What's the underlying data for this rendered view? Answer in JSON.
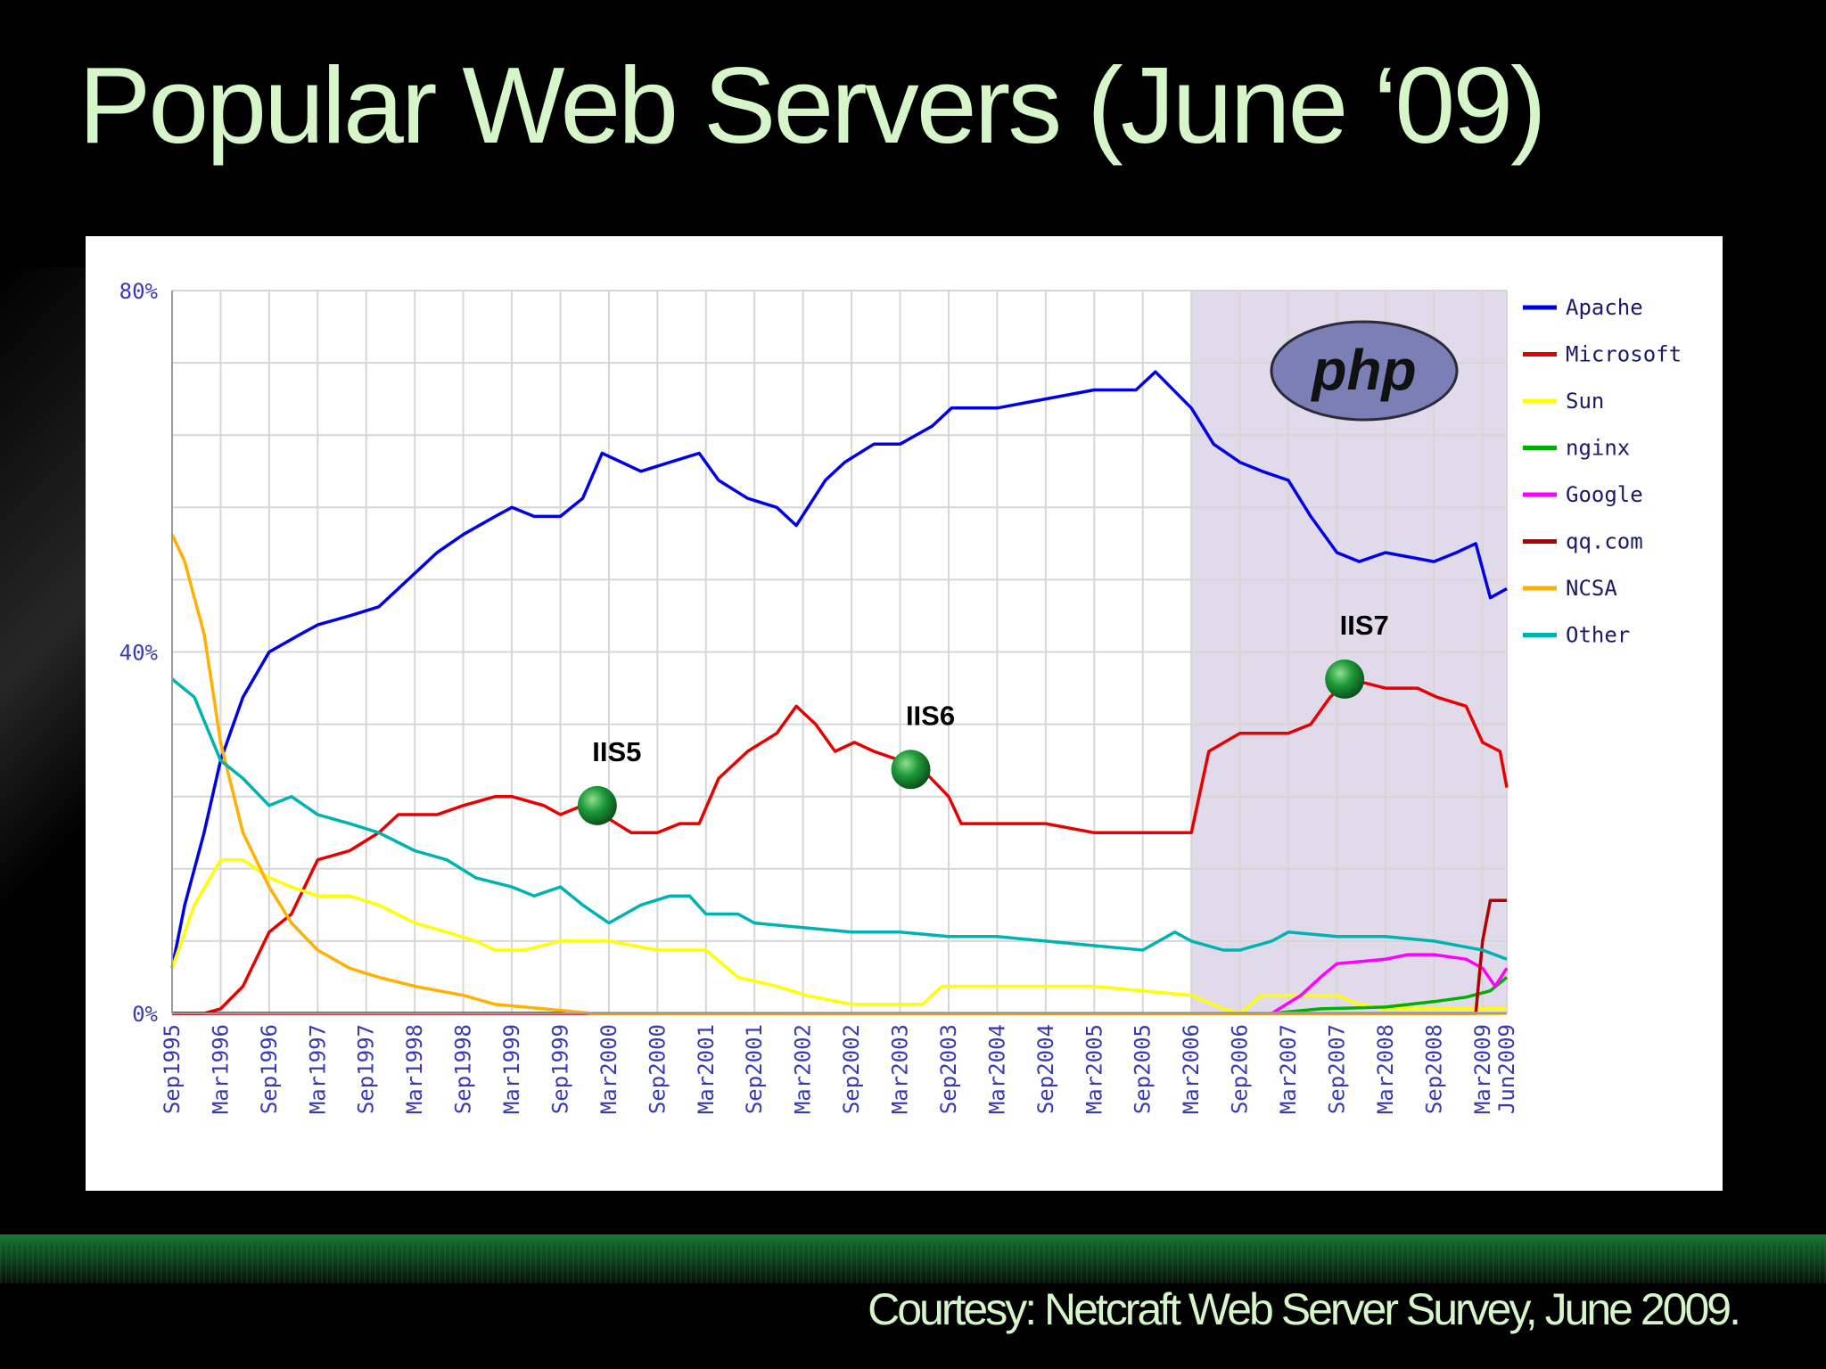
{
  "slide": {
    "title": "Popular Web Servers (June ‘09)",
    "credit": "Courtesy: Netcraft Web Server Survey, June 2009."
  },
  "chart_data": {
    "type": "line",
    "ylim": [
      0,
      80
    ],
    "ytick_labels": [
      "80%",
      "40%",
      "0%"
    ],
    "yticks": [
      80,
      40,
      0
    ],
    "x_tick_labels": [
      "Sep1995",
      "Mar1996",
      "Sep1996",
      "Mar1997",
      "Sep1997",
      "Mar1998",
      "Sep1998",
      "Mar1999",
      "Sep1999",
      "Mar2000",
      "Sep2000",
      "Mar2001",
      "Sep2001",
      "Mar2002",
      "Sep2002",
      "Mar2003",
      "Sep2003",
      "Mar2004",
      "Sep2004",
      "Mar2005",
      "Sep2005",
      "Mar2006",
      "Sep2006",
      "Mar2007",
      "Sep2007",
      "Mar2008",
      "Sep2008",
      "Mar2009",
      "Jun2009"
    ],
    "x_tick_values": [
      1995.67,
      1996.17,
      1996.67,
      1997.17,
      1997.67,
      1998.17,
      1998.67,
      1999.17,
      1999.67,
      2000.17,
      2000.67,
      2001.17,
      2001.67,
      2002.17,
      2002.67,
      2003.17,
      2003.67,
      2004.17,
      2004.67,
      2005.17,
      2005.67,
      2006.17,
      2006.67,
      2007.17,
      2007.67,
      2008.17,
      2008.67,
      2009.17,
      2009.42
    ],
    "xlim": [
      1995.67,
      2009.42
    ],
    "grid": true,
    "legend_position": "right",
    "series": [
      {
        "name": "Apache",
        "color": "#0000e6",
        "points": [
          [
            1995.67,
            5
          ],
          [
            1995.8,
            12
          ],
          [
            1996.0,
            20
          ],
          [
            1996.17,
            28
          ],
          [
            1996.4,
            35
          ],
          [
            1996.67,
            40
          ],
          [
            1997.0,
            42
          ],
          [
            1997.17,
            43
          ],
          [
            1997.5,
            44
          ],
          [
            1997.8,
            45
          ],
          [
            1998.0,
            47
          ],
          [
            1998.4,
            51
          ],
          [
            1998.67,
            53
          ],
          [
            1999.0,
            55
          ],
          [
            1999.17,
            56
          ],
          [
            1999.4,
            55
          ],
          [
            1999.67,
            55
          ],
          [
            1999.9,
            57
          ],
          [
            2000.1,
            62
          ],
          [
            2000.3,
            61
          ],
          [
            2000.5,
            60
          ],
          [
            2000.8,
            61
          ],
          [
            2001.1,
            62
          ],
          [
            2001.3,
            59
          ],
          [
            2001.6,
            57
          ],
          [
            2001.9,
            56
          ],
          [
            2002.1,
            54
          ],
          [
            2002.4,
            59
          ],
          [
            2002.6,
            61
          ],
          [
            2002.9,
            63
          ],
          [
            2003.17,
            63
          ],
          [
            2003.5,
            65
          ],
          [
            2003.7,
            67
          ],
          [
            2004.17,
            67
          ],
          [
            2004.67,
            68
          ],
          [
            2005.17,
            69
          ],
          [
            2005.6,
            69
          ],
          [
            2005.8,
            71
          ],
          [
            2006.17,
            67
          ],
          [
            2006.4,
            63
          ],
          [
            2006.67,
            61
          ],
          [
            2006.9,
            60
          ],
          [
            2007.17,
            59
          ],
          [
            2007.4,
            55
          ],
          [
            2007.67,
            51
          ],
          [
            2007.9,
            50
          ],
          [
            2008.17,
            51
          ],
          [
            2008.67,
            50
          ],
          [
            2008.9,
            51
          ],
          [
            2009.1,
            52
          ],
          [
            2009.25,
            46
          ],
          [
            2009.42,
            47
          ]
        ]
      },
      {
        "name": "Microsoft",
        "color": "#e60000",
        "points": [
          [
            1995.67,
            0
          ],
          [
            1996.0,
            0
          ],
          [
            1996.17,
            0.5
          ],
          [
            1996.4,
            3
          ],
          [
            1996.67,
            9
          ],
          [
            1996.9,
            11
          ],
          [
            1997.17,
            17
          ],
          [
            1997.5,
            18
          ],
          [
            1997.8,
            20
          ],
          [
            1998.0,
            22
          ],
          [
            1998.4,
            22
          ],
          [
            1998.67,
            23
          ],
          [
            1999.0,
            24
          ],
          [
            1999.17,
            24
          ],
          [
            1999.5,
            23
          ],
          [
            1999.67,
            22
          ],
          [
            1999.9,
            23
          ],
          [
            2000.1,
            22
          ],
          [
            2000.4,
            20
          ],
          [
            2000.67,
            20
          ],
          [
            2000.9,
            21
          ],
          [
            2001.1,
            21
          ],
          [
            2001.3,
            26
          ],
          [
            2001.6,
            29
          ],
          [
            2001.9,
            31
          ],
          [
            2002.1,
            34
          ],
          [
            2002.3,
            32
          ],
          [
            2002.5,
            29
          ],
          [
            2002.7,
            30
          ],
          [
            2002.9,
            29
          ],
          [
            2003.17,
            28
          ],
          [
            2003.4,
            27
          ],
          [
            2003.67,
            24
          ],
          [
            2003.8,
            21
          ],
          [
            2004.17,
            21
          ],
          [
            2004.67,
            21
          ],
          [
            2005.17,
            20
          ],
          [
            2005.67,
            20
          ],
          [
            2006.0,
            20
          ],
          [
            2006.17,
            20
          ],
          [
            2006.35,
            29
          ],
          [
            2006.67,
            31
          ],
          [
            2006.9,
            31
          ],
          [
            2007.17,
            31
          ],
          [
            2007.4,
            32
          ],
          [
            2007.6,
            35
          ],
          [
            2007.8,
            37
          ],
          [
            2008.17,
            36
          ],
          [
            2008.5,
            36
          ],
          [
            2008.7,
            35
          ],
          [
            2009.0,
            34
          ],
          [
            2009.17,
            30
          ],
          [
            2009.35,
            29
          ],
          [
            2009.42,
            25
          ]
        ]
      },
      {
        "name": "Sun",
        "color": "#ffff00",
        "points": [
          [
            1995.67,
            5
          ],
          [
            1995.9,
            12
          ],
          [
            1996.17,
            17
          ],
          [
            1996.4,
            17
          ],
          [
            1996.67,
            15
          ],
          [
            1996.9,
            14
          ],
          [
            1997.17,
            13
          ],
          [
            1997.5,
            13
          ],
          [
            1997.8,
            12
          ],
          [
            1998.17,
            10
          ],
          [
            1998.5,
            9
          ],
          [
            1998.8,
            8
          ],
          [
            1999.0,
            7
          ],
          [
            1999.3,
            7
          ],
          [
            1999.67,
            8
          ],
          [
            2000.17,
            8
          ],
          [
            2000.67,
            7
          ],
          [
            2001.17,
            7
          ],
          [
            2001.5,
            4
          ],
          [
            2001.9,
            3
          ],
          [
            2002.2,
            2
          ],
          [
            2002.67,
            1
          ],
          [
            2003.17,
            1
          ],
          [
            2003.4,
            1
          ],
          [
            2003.6,
            3
          ],
          [
            2004.0,
            3
          ],
          [
            2004.67,
            3
          ],
          [
            2005.17,
            3
          ],
          [
            2005.67,
            2.5
          ],
          [
            2006.17,
            2
          ],
          [
            2006.5,
            0.5
          ],
          [
            2006.67,
            0
          ],
          [
            2006.9,
            2
          ],
          [
            2007.3,
            2
          ],
          [
            2007.67,
            2
          ],
          [
            2007.9,
            1
          ],
          [
            2008.17,
            0.5
          ],
          [
            2009.42,
            0.5
          ]
        ]
      },
      {
        "name": "nginx",
        "color": "#00b000",
        "points": [
          [
            2007.0,
            0
          ],
          [
            2007.5,
            0.5
          ],
          [
            2008.17,
            0.7
          ],
          [
            2008.67,
            1.3
          ],
          [
            2009.0,
            1.8
          ],
          [
            2009.25,
            2.5
          ],
          [
            2009.42,
            4
          ]
        ]
      },
      {
        "name": "Google",
        "color": "#ff00ff",
        "points": [
          [
            2007.0,
            0
          ],
          [
            2007.3,
            2
          ],
          [
            2007.5,
            4
          ],
          [
            2007.67,
            5.5
          ],
          [
            2008.17,
            6
          ],
          [
            2008.4,
            6.5
          ],
          [
            2008.67,
            6.5
          ],
          [
            2009.0,
            6
          ],
          [
            2009.17,
            5
          ],
          [
            2009.3,
            3
          ],
          [
            2009.42,
            5
          ]
        ]
      },
      {
        "name": "qq.com",
        "color": "#b00000",
        "points": [
          [
            1995.67,
            0
          ],
          [
            2009.1,
            0
          ],
          [
            2009.17,
            8
          ],
          [
            2009.25,
            12.5
          ],
          [
            2009.42,
            12.5
          ]
        ]
      },
      {
        "name": "NCSA",
        "color": "#ffb000",
        "points": [
          [
            1995.67,
            53
          ],
          [
            1995.8,
            50
          ],
          [
            1995.9,
            46
          ],
          [
            1996.0,
            42
          ],
          [
            1996.1,
            35
          ],
          [
            1996.17,
            30
          ],
          [
            1996.4,
            20
          ],
          [
            1996.67,
            14
          ],
          [
            1996.9,
            10
          ],
          [
            1997.17,
            7
          ],
          [
            1997.5,
            5
          ],
          [
            1997.8,
            4
          ],
          [
            1998.17,
            3
          ],
          [
            1998.67,
            2
          ],
          [
            1999.0,
            1
          ],
          [
            1999.5,
            0.5
          ],
          [
            2000.0,
            0
          ],
          [
            2009.42,
            0
          ]
        ]
      },
      {
        "name": "Other",
        "color": "#00b3b3",
        "points": [
          [
            1995.67,
            37
          ],
          [
            1995.9,
            35
          ],
          [
            1996.17,
            28
          ],
          [
            1996.4,
            26
          ],
          [
            1996.67,
            23
          ],
          [
            1996.9,
            24
          ],
          [
            1997.17,
            22
          ],
          [
            1997.5,
            21
          ],
          [
            1997.8,
            20
          ],
          [
            1998.17,
            18
          ],
          [
            1998.5,
            17
          ],
          [
            1998.8,
            15
          ],
          [
            1999.17,
            14
          ],
          [
            1999.4,
            13
          ],
          [
            1999.67,
            14
          ],
          [
            1999.9,
            12
          ],
          [
            2000.17,
            10
          ],
          [
            2000.5,
            12
          ],
          [
            2000.8,
            13
          ],
          [
            2001.0,
            13
          ],
          [
            2001.17,
            11
          ],
          [
            2001.5,
            11
          ],
          [
            2001.67,
            10
          ],
          [
            2002.17,
            9.5
          ],
          [
            2002.67,
            9
          ],
          [
            2003.17,
            9
          ],
          [
            2003.67,
            8.5
          ],
          [
            2004.17,
            8.5
          ],
          [
            2004.67,
            8
          ],
          [
            2005.17,
            7.5
          ],
          [
            2005.67,
            7
          ],
          [
            2006.0,
            9
          ],
          [
            2006.17,
            8
          ],
          [
            2006.5,
            7
          ],
          [
            2006.67,
            7
          ],
          [
            2007.0,
            8
          ],
          [
            2007.17,
            9
          ],
          [
            2007.67,
            8.5
          ],
          [
            2008.17,
            8.5
          ],
          [
            2008.67,
            8
          ],
          [
            2009.17,
            7
          ],
          [
            2009.42,
            6
          ]
        ]
      }
    ],
    "annotations": [
      {
        "label": "IIS5",
        "x": 2000.05,
        "y": 23.0
      },
      {
        "label": "IIS6",
        "x": 2003.28,
        "y": 27.0
      },
      {
        "label": "IIS7",
        "x": 2007.75,
        "y": 37.0
      }
    ],
    "highlight_region": {
      "x_start": 2006.17,
      "x_end": 2009.42
    },
    "logo_text": "php"
  }
}
